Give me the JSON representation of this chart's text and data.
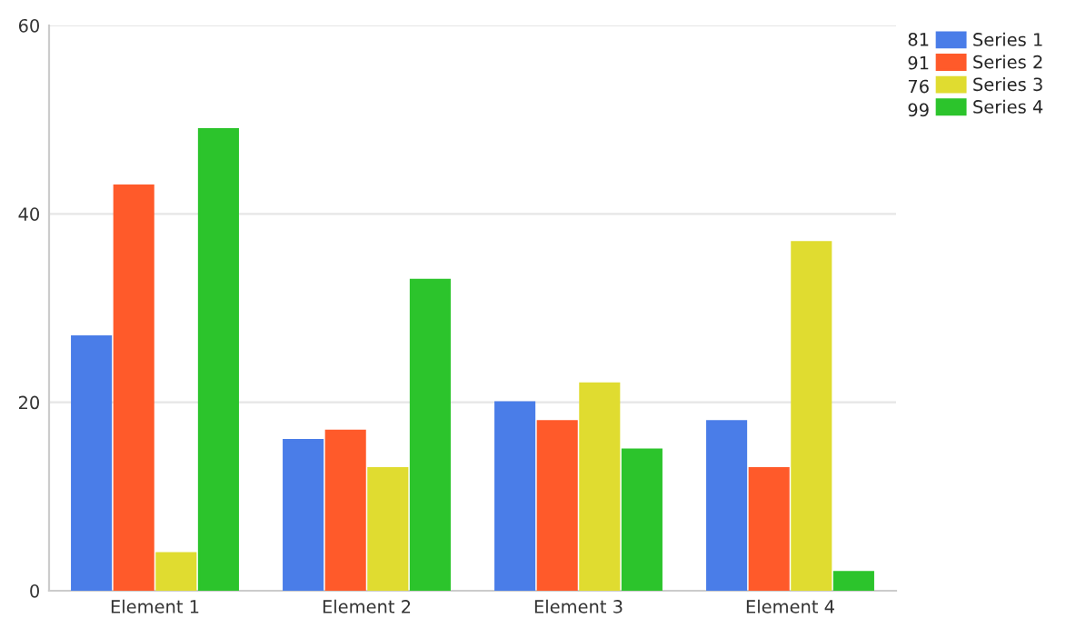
{
  "chart_data": {
    "type": "bar",
    "categories": [
      "Element 1",
      "Element 2",
      "Element 3",
      "Element 4"
    ],
    "series": [
      {
        "name": "Series 1",
        "color": "#4a7de8",
        "values": [
          27,
          16,
          20,
          18
        ]
      },
      {
        "name": "Series 2",
        "color": "#ff5a2a",
        "values": [
          43,
          17,
          18,
          13
        ]
      },
      {
        "name": "Series 3",
        "color": "#e0dc30",
        "values": [
          4,
          13,
          22,
          37
        ]
      },
      {
        "name": "Series 4",
        "color": "#2cc42c",
        "values": [
          49,
          33,
          15,
          2
        ]
      }
    ],
    "ylim": [
      0,
      60
    ],
    "yticks": [
      0,
      20,
      40,
      60
    ],
    "grid": "y",
    "legend": "top right",
    "annotations": [
      "81",
      "91",
      "76",
      "99"
    ]
  }
}
